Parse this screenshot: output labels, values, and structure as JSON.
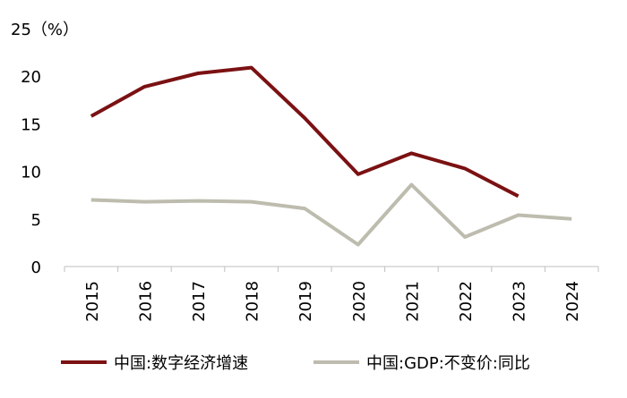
{
  "chart_data": {
    "type": "line",
    "title": "",
    "xlabel": "",
    "ylabel": "",
    "y_unit_label": "25（%）",
    "ylim": [
      0,
      25
    ],
    "y_ticks": [
      "0",
      "5",
      "10",
      "15",
      "20"
    ],
    "categories": [
      "2015",
      "2016",
      "2017",
      "2018",
      "2019",
      "2020",
      "2021",
      "2022",
      "2023",
      "2024"
    ],
    "grid": false,
    "legend_position": "bottom",
    "series": [
      {
        "name": "中国:数字经济增速",
        "color": "#7b1113",
        "values": [
          15.8,
          18.9,
          20.3,
          20.9,
          15.6,
          9.7,
          11.9,
          10.3,
          7.4,
          null
        ]
      },
      {
        "name": "中国:GDP:不变价:同比",
        "color": "#bdbcae",
        "values": [
          7.0,
          6.8,
          6.9,
          6.8,
          6.1,
          2.3,
          8.6,
          3.1,
          5.4,
          5.0
        ]
      }
    ]
  }
}
